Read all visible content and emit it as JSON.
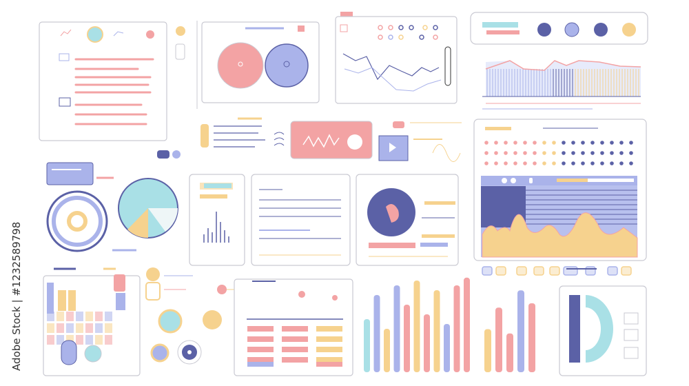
{
  "watermark": "Adobe Stock | #1232589798",
  "colors": {
    "pink": "#f3a3a4",
    "blue": "#aab3ea",
    "navy": "#5b61a6",
    "yellow": "#f6d28e",
    "cyan": "#a9e0e6",
    "border": "#c9c9d2"
  },
  "bottom_bars": {
    "levels": [
      0.55,
      0.8,
      0.45,
      0.9,
      0.7,
      0.95,
      0.6,
      0.85,
      0.5,
      0.9,
      0.98
    ],
    "colors": [
      "cyan",
      "blue",
      "yellow",
      "blue",
      "pink",
      "yellow",
      "pink",
      "yellow",
      "blue",
      "pink",
      "pink"
    ]
  },
  "right_bars": {
    "levels": [
      0.5,
      0.75,
      0.45,
      0.95,
      0.8
    ],
    "colors": [
      "yellow",
      "pink",
      "pink",
      "blue",
      "pink"
    ]
  },
  "small_bars": {
    "levels": [
      0.2,
      0.35,
      0.25,
      0.75,
      0.5,
      0.3,
      0.15
    ]
  }
}
